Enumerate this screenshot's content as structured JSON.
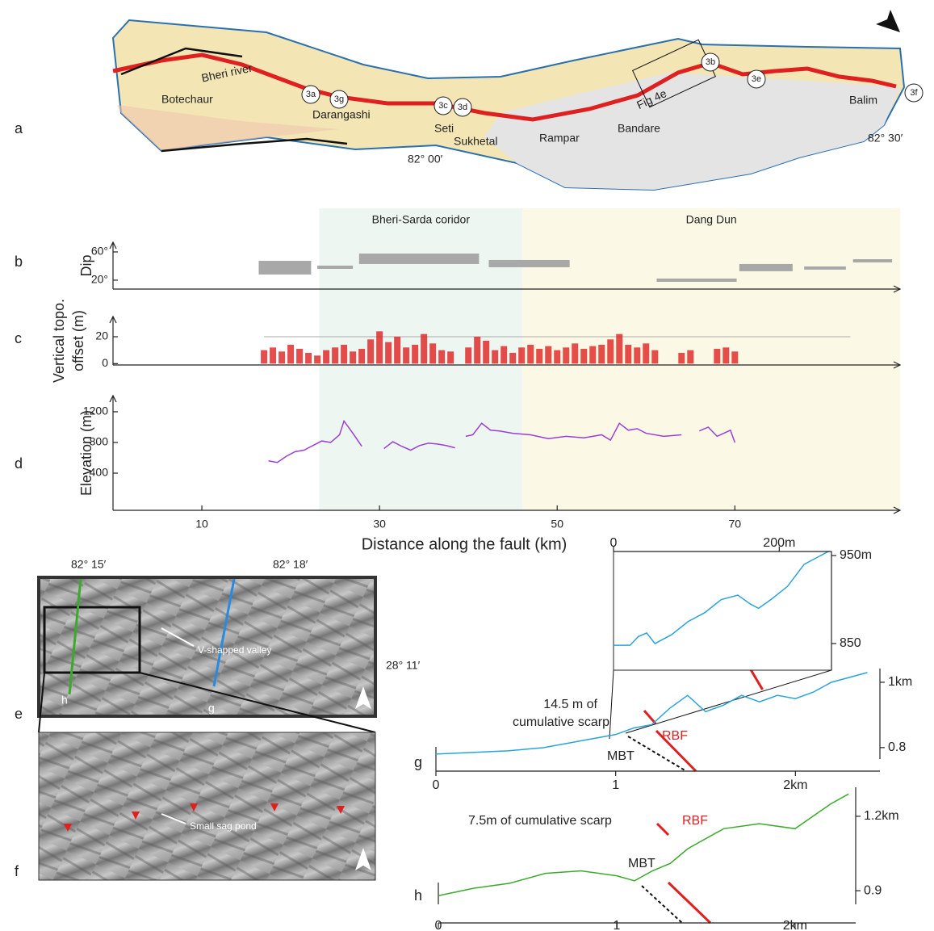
{
  "panel_labels": [
    "a",
    "b",
    "c",
    "d",
    "e",
    "f",
    "g",
    "h"
  ],
  "map": {
    "places": [
      "Bheri river",
      "Botechaur",
      "Darangashi",
      "Seti",
      "Sukhetal",
      "Rampar",
      "Bandare",
      "Fig 4e",
      "Balim"
    ],
    "sites": [
      "3a",
      "3g",
      "3c",
      "3d",
      "3b",
      "3e",
      "3f"
    ],
    "coords": [
      "82° 00′",
      "82° 30′"
    ]
  },
  "profiles": {
    "xlabel": "Distance along  the fault (km)",
    "xlim": [
      0,
      88.6
    ],
    "xticks": [
      10,
      30,
      50,
      70
    ],
    "zones": [
      {
        "label": "Bheri-Sarda coridor",
        "start": 23.2,
        "end": 46.1,
        "color": "#eef6f1"
      },
      {
        "label": "Dang Dun",
        "start": 46.1,
        "end": 88.6,
        "color": "#fcf8e6"
      }
    ],
    "dip": {
      "ylabel": "Dip",
      "ylim": [
        7.4,
        73.7
      ],
      "yticks": [
        {
          "value": 20,
          "label": "20°"
        },
        {
          "value": 60,
          "label": "60°"
        }
      ],
      "color": "#a8a8a8",
      "bars": [
        {
          "start": 16.4,
          "end": 22.3,
          "low": 28,
          "high": 47.4
        },
        {
          "start": 23,
          "end": 27,
          "low": 36,
          "high": 40.6
        },
        {
          "start": 27.7,
          "end": 41.2,
          "low": 42.9,
          "high": 57.7
        },
        {
          "start": 42.3,
          "end": 51.4,
          "low": 38.3,
          "high": 48.6
        },
        {
          "start": 61.2,
          "end": 70.2,
          "low": 17.7,
          "high": 22.3
        },
        {
          "start": 70.5,
          "end": 76.5,
          "low": 32.6,
          "high": 42.9
        },
        {
          "start": 77.8,
          "end": 82.5,
          "low": 34.9,
          "high": 39.4
        },
        {
          "start": 83.3,
          "end": 87.7,
          "low": 45.1,
          "high": 49.7
        }
      ]
    },
    "offset": {
      "ylabel": [
        "Vertical topo.",
        "offset (m)"
      ],
      "ylim": [
        -1,
        35
      ],
      "yticks": [
        0,
        20
      ],
      "color": "#e02020",
      "x": [
        17,
        18,
        19,
        20,
        21,
        22,
        23,
        24,
        25,
        26,
        27,
        28,
        29,
        30,
        31,
        32,
        33,
        34,
        35,
        36,
        37,
        38,
        39,
        40,
        41,
        42,
        43,
        44,
        45,
        46,
        47,
        48,
        49,
        50,
        51,
        52,
        53,
        54,
        55,
        56,
        57,
        58,
        59,
        60,
        61,
        62,
        63,
        64,
        65,
        66,
        67,
        68,
        69,
        70
      ],
      "values": [
        10,
        12,
        9,
        14,
        11,
        8,
        6,
        10,
        12,
        14,
        9,
        11,
        18,
        24,
        16,
        20,
        12,
        14,
        22,
        15,
        10,
        9,
        null,
        12,
        20,
        17,
        10,
        13,
        8,
        12,
        14,
        11,
        13,
        10,
        12,
        15,
        11,
        13,
        14,
        18,
        22,
        14,
        12,
        15,
        10,
        null,
        null,
        8,
        10,
        null,
        null,
        11,
        12,
        9
      ]
    },
    "elevation": {
      "ylabel": "Elevation (m)",
      "ylim": [
        -84,
        1410
      ],
      "yticks": [
        400,
        800,
        1200
      ],
      "color": "#9b3fd6",
      "x": [
        17.5,
        18.5,
        19.5,
        20.5,
        21.5,
        22.5,
        23.5,
        24.5,
        25.5,
        26,
        27,
        28,
        29,
        30.5,
        31.5,
        32.5,
        33.5,
        34.5,
        35.5,
        36.5,
        37.5,
        38.5,
        39,
        39.7,
        40.5,
        41.5,
        42.5,
        43.5,
        45,
        47,
        49,
        51,
        53,
        55,
        56,
        57,
        58,
        59,
        60,
        62,
        64,
        65,
        66,
        67,
        68,
        69.5,
        70
      ],
      "values": [
        560,
        540,
        620,
        680,
        700,
        760,
        820,
        800,
        900,
        1080,
        920,
        750,
        null,
        720,
        810,
        750,
        700,
        760,
        790,
        780,
        760,
        730,
        null,
        880,
        900,
        1050,
        960,
        950,
        920,
        900,
        850,
        880,
        860,
        900,
        830,
        1050,
        960,
        980,
        920,
        880,
        900,
        null,
        950,
        1000,
        880,
        960,
        800
      ]
    }
  },
  "hillshade": {
    "coords": [
      "82° 15′",
      "82° 18′",
      "28° 11′"
    ],
    "profile_names": [
      "h",
      "g"
    ],
    "valley": "V-shapped valley",
    "sag": "Small sag pond"
  },
  "profile_g": {
    "annotation": [
      "14.5 m of",
      "cumulative scarp"
    ],
    "faults": [
      "RBF",
      "MBT"
    ],
    "xlim": [
      0,
      2.47
    ],
    "ylim": [
      0.765,
      1.042
    ],
    "xticks": [
      0,
      1,
      {
        "value": 2,
        "label": "2km"
      }
    ],
    "yticks": [
      {
        "value": 1,
        "label": "1km"
      },
      0.8
    ],
    "x": [
      0,
      0.2,
      0.4,
      0.6,
      0.8,
      1.0,
      1.1,
      1.2,
      1.3,
      1.4,
      1.5,
      1.6,
      1.7,
      1.8,
      1.9,
      2.0,
      2.1,
      2.2,
      2.4
    ],
    "values": [
      0.78,
      0.785,
      0.79,
      0.8,
      0.82,
      0.84,
      0.86,
      0.87,
      0.92,
      0.96,
      0.91,
      0.93,
      0.96,
      0.94,
      0.96,
      0.95,
      0.97,
      1.0,
      1.03
    ],
    "color": "#2aa3dc"
  },
  "inset_g": {
    "xlim": [
      0,
      263
    ],
    "ylim": [
      819.7,
      954.6
    ],
    "xticks": [
      0,
      {
        "value": 200,
        "label": "200m"
      }
    ],
    "yticks": [
      850,
      {
        "value": 950,
        "label": "950m"
      }
    ],
    "x": [
      0,
      20,
      30,
      40,
      50,
      70,
      90,
      110,
      130,
      150,
      165,
      175,
      190,
      210,
      230,
      260
    ],
    "values": [
      848,
      848,
      858,
      862,
      850,
      860,
      875,
      885,
      900,
      905,
      895,
      890,
      900,
      915,
      940,
      955
    ],
    "color": "#2aa3dc"
  },
  "profile_h": {
    "annotation": "7.5m of cumulative scarp",
    "faults": [
      "RBF",
      "MBT"
    ],
    "xlim": [
      0,
      2.34
    ],
    "ylim": [
      0.845,
      1.317
    ],
    "xticks": [
      0,
      1,
      {
        "value": 2,
        "label": "2km"
      }
    ],
    "yticks": [
      {
        "value": 1.2,
        "label": "1.2km"
      },
      0.9
    ],
    "x": [
      0,
      0.2,
      0.4,
      0.6,
      0.8,
      1.0,
      1.1,
      1.2,
      1.3,
      1.4,
      1.6,
      1.8,
      2.0,
      2.2,
      2.3
    ],
    "values": [
      0.88,
      0.91,
      0.93,
      0.97,
      0.98,
      0.96,
      0.94,
      0.98,
      1.01,
      1.07,
      1.15,
      1.17,
      1.15,
      1.25,
      1.29
    ],
    "color": "#3aaa2a"
  }
}
